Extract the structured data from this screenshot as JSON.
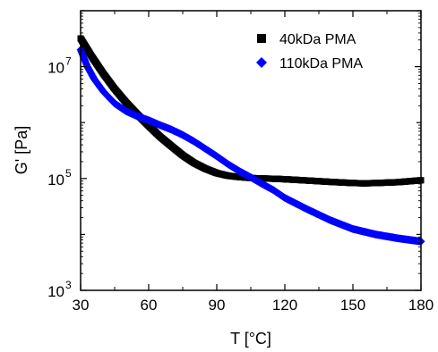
{
  "chart_data": {
    "type": "scatter",
    "xlabel": "T [°C]",
    "ylabel": "G' [Pa]",
    "xlim": [
      30,
      180
    ],
    "ylim": [
      1000,
      100000000
    ],
    "y_scale": "log",
    "grid": false,
    "legend_position": "top-right",
    "x_ticks": [
      30,
      60,
      90,
      120,
      150,
      180
    ],
    "x_tick_labels": [
      "30",
      "60",
      "90",
      "120",
      "150",
      "180"
    ],
    "y_ticks": [
      1000,
      100000,
      10000000
    ],
    "y_tick_labels": [
      {
        "base": "10",
        "exp": "3"
      },
      {
        "base": "10",
        "exp": "5"
      },
      {
        "base": "10",
        "exp": "7"
      }
    ],
    "series": [
      {
        "name": "40kDa PMA",
        "marker": "square",
        "color": "#000000",
        "x": [
          30,
          35,
          40,
          45,
          50,
          55,
          60,
          65,
          70,
          75,
          80,
          85,
          90,
          95,
          100,
          105,
          110,
          115,
          120,
          130,
          140,
          150,
          155,
          160,
          170,
          180
        ],
        "y": [
          32000000,
          15000000,
          7500000,
          4000000,
          2300000,
          1400000,
          880000,
          560000,
          380000,
          260000,
          190000,
          150000,
          125000,
          112000,
          106000,
          102000,
          100000,
          99000,
          97000,
          92000,
          87000,
          83000,
          82000,
          83000,
          86000,
          93000
        ]
      },
      {
        "name": "110kDa PMA",
        "marker": "diamond",
        "color": "#0000ff",
        "x": [
          30,
          33,
          36,
          40,
          45,
          50,
          55,
          60,
          65,
          70,
          75,
          80,
          85,
          90,
          95,
          100,
          105,
          110,
          115,
          120,
          130,
          140,
          150,
          160,
          170,
          180
        ],
        "y": [
          20000000,
          10000000,
          6000000,
          3600000,
          2200000,
          1600000,
          1300000,
          1100000,
          900000,
          750000,
          600000,
          460000,
          340000,
          250000,
          180000,
          135000,
          105000,
          80000,
          62000,
          45000,
          28000,
          18000,
          12500,
          10000,
          8500,
          7500
        ]
      }
    ]
  }
}
